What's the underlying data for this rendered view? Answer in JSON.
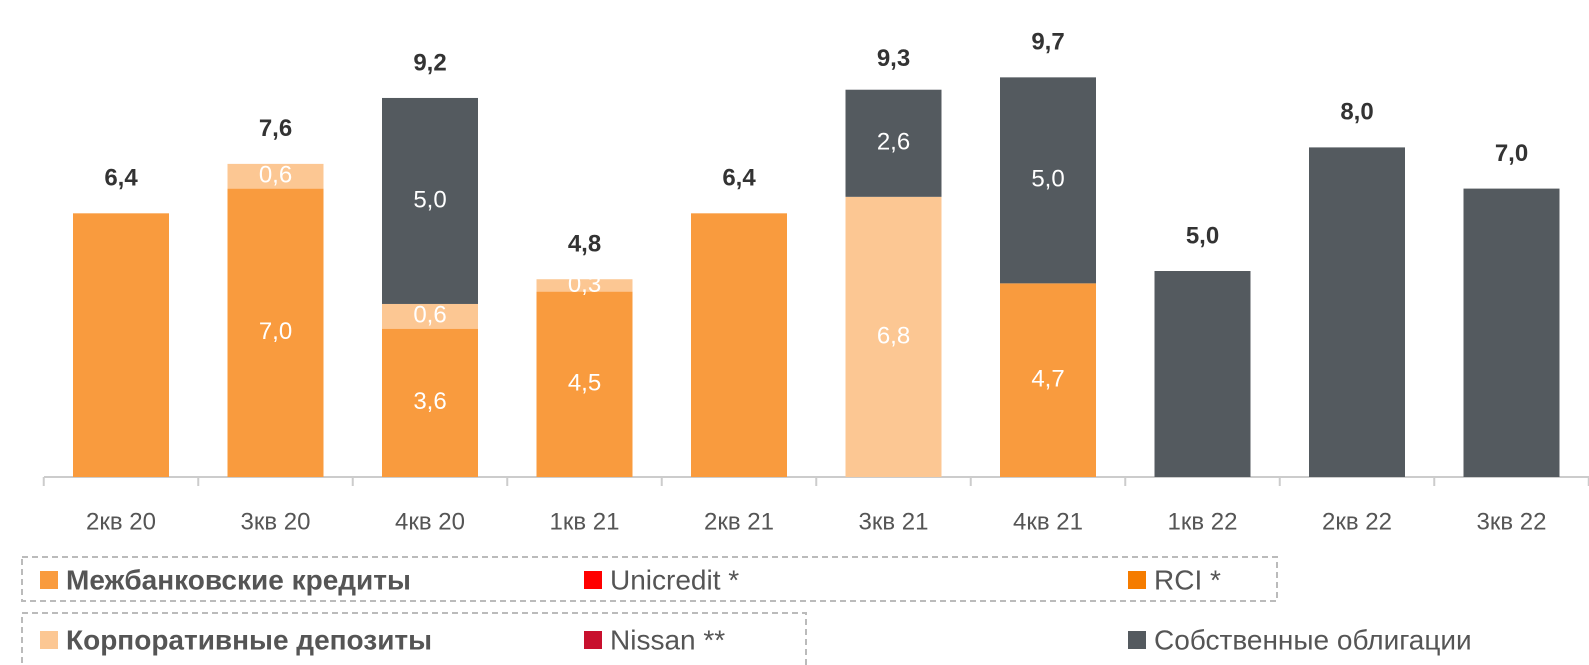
{
  "chart_data": {
    "type": "stacked_bar",
    "categories": [
      "2кв 20",
      "3кв 20",
      "4кв 20",
      "1кв 21",
      "2кв 21",
      "3кв 21",
      "4кв 21",
      "1кв 22",
      "2кв 22",
      "3кв 22"
    ],
    "series": [
      {
        "name": "Межбанковские кредиты",
        "color": "#f99b3e",
        "values": [
          6.4,
          7.0,
          3.6,
          4.5,
          6.4,
          null,
          4.7,
          null,
          null,
          null
        ],
        "value_labels": [
          null,
          "7,0",
          "3,6",
          "4,5",
          null,
          null,
          "4,7",
          null,
          null,
          null
        ]
      },
      {
        "name": "Unicredit *",
        "color": "#ff0000",
        "values": [
          null,
          null,
          null,
          null,
          null,
          null,
          null,
          null,
          null,
          null
        ]
      },
      {
        "name": "RCI *",
        "color": "#f57c00",
        "values": [
          null,
          null,
          null,
          null,
          null,
          null,
          null,
          null,
          null,
          null
        ]
      },
      {
        "name": "Корпоративные депозиты",
        "color": "#fcc793",
        "values": [
          null,
          0.6,
          0.6,
          0.3,
          null,
          6.8,
          null,
          null,
          null,
          null
        ],
        "value_labels": [
          null,
          "0,6",
          "0,6",
          "0,3",
          null,
          "6,8",
          null,
          null,
          null,
          null
        ]
      },
      {
        "name": "Nissan **",
        "color": "#c8102e",
        "values": [
          null,
          null,
          null,
          null,
          null,
          null,
          null,
          null,
          null,
          null
        ]
      },
      {
        "name": "Собственные облигации",
        "color": "#545a5f",
        "values": [
          null,
          null,
          5.0,
          null,
          null,
          2.6,
          5.0,
          5.0,
          8.0,
          7.0
        ],
        "value_labels": [
          null,
          null,
          "5,0",
          null,
          null,
          "2,6",
          "5,0",
          null,
          null,
          null
        ]
      }
    ],
    "totals": [
      6.4,
      7.6,
      9.2,
      4.8,
      6.4,
      9.3,
      9.7,
      5.0,
      8.0,
      7.0
    ],
    "total_labels": [
      "6,4",
      "7,6",
      "9,2",
      "4,8",
      "6,4",
      "9,3",
      "9,7",
      "5,0",
      "8,0",
      "7,0"
    ],
    "ylim": [
      0,
      10
    ]
  }
}
